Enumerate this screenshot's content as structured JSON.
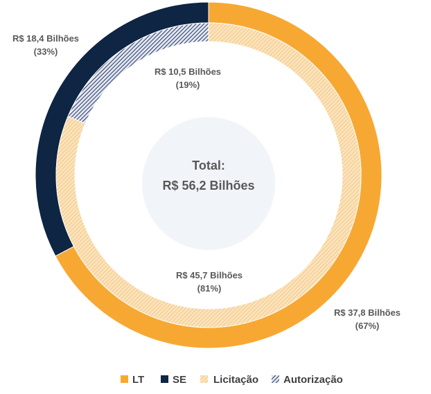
{
  "chart_data": {
    "type": "donut",
    "rings": [
      {
        "ring": "outer",
        "series": [
          {
            "name": "LT",
            "value": 37.8,
            "percent": 67,
            "label": "R$ 37,8 Bilhões",
            "pct_label": "(67%)",
            "color": "#F7A833",
            "pattern": "solid"
          },
          {
            "name": "SE",
            "value": 18.4,
            "percent": 33,
            "label": "R$ 18,4 Bilhões",
            "pct_label": "(33%)",
            "color": "#0E2543",
            "pattern": "solid"
          }
        ]
      },
      {
        "ring": "inner",
        "series": [
          {
            "name": "Licitação",
            "value": 45.7,
            "percent": 81,
            "label": "R$ 45,7 Bilhões",
            "pct_label": "(81%)",
            "color": "#F7A833",
            "pattern": "light-hatch"
          },
          {
            "name": "Autorização",
            "value": 10.5,
            "percent": 19,
            "label": "R$ 10,5 Bilhões",
            "pct_label": "(19%)",
            "color": "#0E2543",
            "pattern": "dark-hatch"
          }
        ]
      }
    ],
    "center": {
      "line1": "Total:",
      "line2": "R$ 56,2 Bilhões"
    },
    "legend_position": "bottom"
  }
}
